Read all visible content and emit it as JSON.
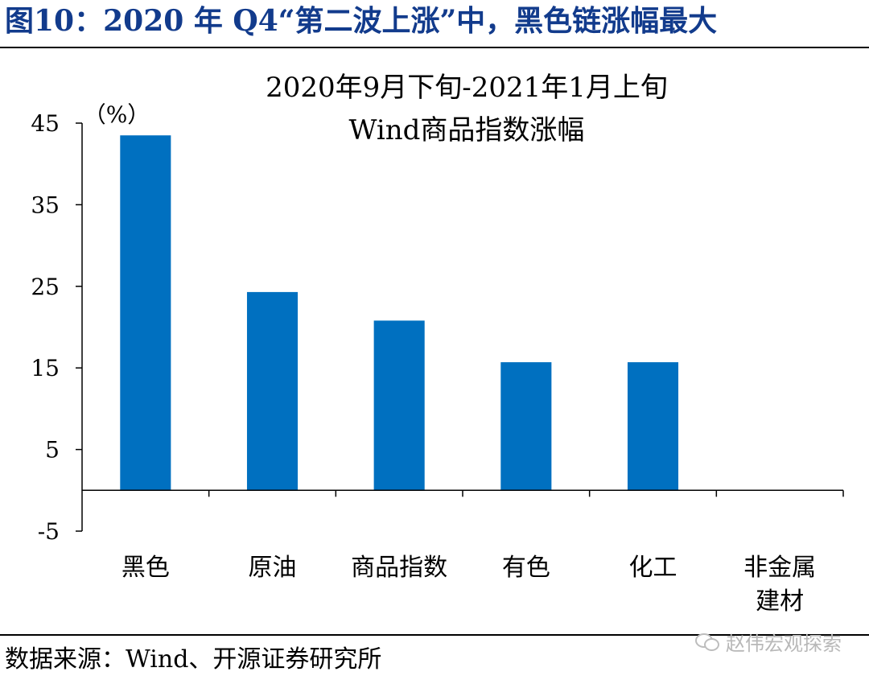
{
  "figure": {
    "title": "图10：2020 年 Q4“第二波上涨”中，黑色链涨幅最大",
    "source": "数据来源：Wind、开源证券研究所",
    "watermark": "赵伟宏观探索",
    "watermark_icon": "wechat-icon"
  },
  "chart_data": {
    "type": "bar",
    "title": "2020年9月下旬-2021年1月上旬",
    "subtitle": "Wind商品指数涨幅",
    "ylabel": "（%）",
    "xlabel": "",
    "categories": [
      "黑色",
      "原油",
      "商品指数",
      "有色",
      "化工",
      "非金属建材"
    ],
    "values": [
      43.5,
      24.3,
      20.8,
      15.7,
      15.7,
      0
    ],
    "yticks": [
      45,
      35,
      25,
      15,
      5,
      -5
    ],
    "ylim": [
      -5,
      45
    ],
    "grid": false,
    "legend": "none",
    "bar_color": "#0070c0"
  }
}
